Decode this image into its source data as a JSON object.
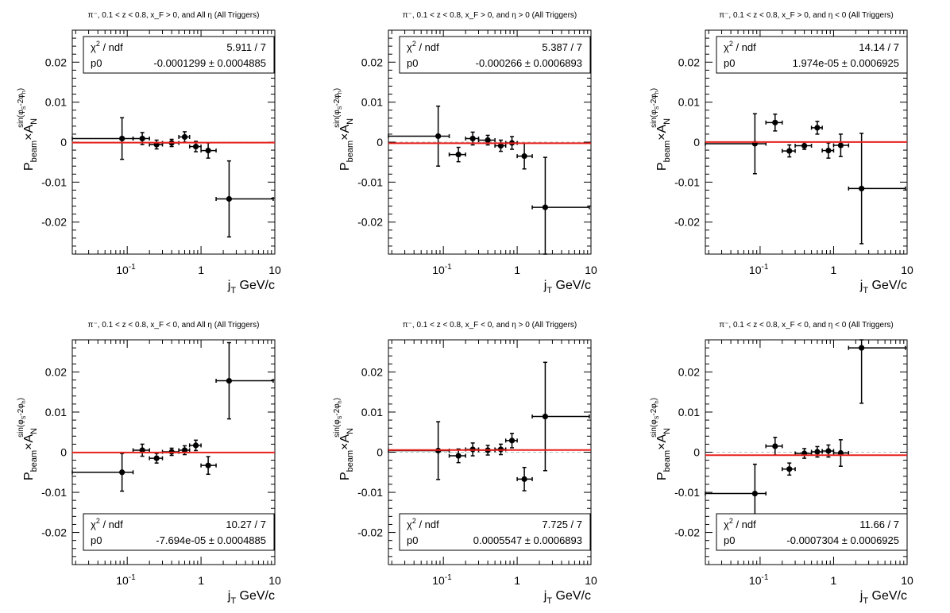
{
  "chart_data": [
    {
      "type": "scatter",
      "title": "π⁻, 0.1 < z < 0.8, x_F > 0, and All η (All Triggers)",
      "xlabel": "j_T GeV/c",
      "ylabel": "P_beam × A_N^{sin(φ_S − 2φ_h)}",
      "xscale": "log",
      "xlim": [
        0.018,
        10
      ],
      "ylim": [
        -0.028,
        0.028
      ],
      "xticks": [
        "10⁻¹",
        "1",
        "10"
      ],
      "yticks": [
        "0.02",
        "0.01",
        "0",
        "-0.01",
        "-0.02"
      ],
      "stats_box": {
        "position": "top",
        "chi2_label": "χ² / ndf",
        "chi2": "5.911 / 7",
        "p0_label": "p0",
        "p0": "-0.0001299 ± 0.0004885"
      },
      "fit": {
        "p0": -0.0001299,
        "color": "#e8201c"
      },
      "points": [
        {
          "x": 0.085,
          "y": 0.0009,
          "xlo": 0.018,
          "xhi": 0.12,
          "err": 0.0052
        },
        {
          "x": 0.16,
          "y": 0.0009,
          "xlo": 0.12,
          "xhi": 0.2,
          "err": 0.0015
        },
        {
          "x": 0.25,
          "y": -0.0006,
          "xlo": 0.2,
          "xhi": 0.3,
          "err": 0.0011
        },
        {
          "x": 0.4,
          "y": -0.0002,
          "xlo": 0.3,
          "xhi": 0.5,
          "err": 0.0009
        },
        {
          "x": 0.6,
          "y": 0.0013,
          "xlo": 0.5,
          "xhi": 0.7,
          "err": 0.0013
        },
        {
          "x": 0.85,
          "y": -0.0011,
          "xlo": 0.7,
          "xhi": 1.0,
          "err": 0.0013
        },
        {
          "x": 1.25,
          "y": -0.0021,
          "xlo": 1.0,
          "xhi": 1.6,
          "err": 0.0019
        },
        {
          "x": 2.4,
          "y": -0.0142,
          "xlo": 1.6,
          "xhi": 9.5,
          "err": 0.0095
        }
      ]
    },
    {
      "type": "scatter",
      "title": "π⁻, 0.1 < z < 0.8, x_F > 0, and η > 0 (All Triggers)",
      "xlabel": "j_T GeV/c",
      "ylabel": "P_beam × A_N^{sin(φ_S − 2φ_h)}",
      "xscale": "log",
      "xlim": [
        0.018,
        10
      ],
      "ylim": [
        -0.028,
        0.028
      ],
      "xticks": [
        "10⁻¹",
        "1",
        "10"
      ],
      "yticks": [
        "0.02",
        "0.01",
        "0",
        "-0.01",
        "-0.02"
      ],
      "stats_box": {
        "position": "top",
        "chi2_label": "χ² / ndf",
        "chi2": "5.387 / 7",
        "p0_label": "p0",
        "p0": "-0.000266 ± 0.0006893"
      },
      "fit": {
        "p0": -0.000266,
        "color": "#e8201c"
      },
      "points": [
        {
          "x": 0.085,
          "y": 0.0015,
          "xlo": 0.018,
          "xhi": 0.12,
          "err": 0.0075
        },
        {
          "x": 0.16,
          "y": -0.0031,
          "xlo": 0.12,
          "xhi": 0.2,
          "err": 0.0018
        },
        {
          "x": 0.25,
          "y": 0.0009,
          "xlo": 0.2,
          "xhi": 0.3,
          "err": 0.0016
        },
        {
          "x": 0.4,
          "y": 0.0005,
          "xlo": 0.3,
          "xhi": 0.5,
          "err": 0.0012
        },
        {
          "x": 0.6,
          "y": -0.0009,
          "xlo": 0.5,
          "xhi": 0.7,
          "err": 0.0014
        },
        {
          "x": 0.85,
          "y": -0.0002,
          "xlo": 0.7,
          "xhi": 1.0,
          "err": 0.0016
        },
        {
          "x": 1.25,
          "y": -0.0035,
          "xlo": 1.0,
          "xhi": 1.6,
          "err": 0.0032
        },
        {
          "x": 2.4,
          "y": -0.0163,
          "xlo": 1.6,
          "xhi": 9.5,
          "err": 0.0125
        }
      ]
    },
    {
      "type": "scatter",
      "title": "π⁻, 0.1 < z < 0.8, x_F > 0, and η < 0 (All Triggers)",
      "xlabel": "j_T GeV/c",
      "ylabel": "P_beam × A_N^{sin(φ_S − 2φ_h)}",
      "xscale": "log",
      "xlim": [
        0.018,
        10
      ],
      "ylim": [
        -0.028,
        0.028
      ],
      "xticks": [
        "10⁻¹",
        "1",
        "10"
      ],
      "yticks": [
        "0.02",
        "0.01",
        "0",
        "-0.01",
        "-0.02"
      ],
      "stats_box": {
        "position": "top",
        "chi2_label": "χ² / ndf",
        "chi2": "14.14 / 7",
        "p0_label": "p0",
        "p0": "1.974e-05 ± 0.0006925"
      },
      "fit": {
        "p0": 1.974e-05,
        "color": "#e8201c"
      },
      "points": [
        {
          "x": 0.085,
          "y": -0.0004,
          "xlo": 0.018,
          "xhi": 0.12,
          "err": 0.0075
        },
        {
          "x": 0.16,
          "y": 0.0049,
          "xlo": 0.12,
          "xhi": 0.2,
          "err": 0.0021
        },
        {
          "x": 0.25,
          "y": -0.0022,
          "xlo": 0.2,
          "xhi": 0.3,
          "err": 0.0015
        },
        {
          "x": 0.4,
          "y": -0.0009,
          "xlo": 0.3,
          "xhi": 0.5,
          "err": 0.0009
        },
        {
          "x": 0.6,
          "y": 0.0036,
          "xlo": 0.5,
          "xhi": 0.7,
          "err": 0.0016
        },
        {
          "x": 0.85,
          "y": -0.0021,
          "xlo": 0.7,
          "xhi": 1.0,
          "err": 0.0019
        },
        {
          "x": 1.25,
          "y": -0.0008,
          "xlo": 1.0,
          "xhi": 1.6,
          "err": 0.0028
        },
        {
          "x": 2.4,
          "y": -0.0116,
          "xlo": 1.6,
          "xhi": 9.5,
          "err": 0.0138
        }
      ]
    },
    {
      "type": "scatter",
      "title": "π⁻, 0.1 < z < 0.8, x_F < 0, and All η (All Triggers)",
      "xlabel": "j_T GeV/c",
      "ylabel": "P_beam × A_N^{sin(φ_S − 2φ_h)}",
      "xscale": "log",
      "xlim": [
        0.018,
        10
      ],
      "ylim": [
        -0.028,
        0.028
      ],
      "xticks": [
        "10⁻¹",
        "1",
        "10"
      ],
      "yticks": [
        "0.02",
        "0.01",
        "0",
        "-0.01",
        "-0.02"
      ],
      "stats_box": {
        "position": "bottom",
        "chi2_label": "χ² / ndf",
        "chi2": "10.27 / 7",
        "p0_label": "p0",
        "p0": "-7.694e-05 ± 0.0004885"
      },
      "fit": {
        "p0": -7.694e-05,
        "color": "#e8201c"
      },
      "points": [
        {
          "x": 0.085,
          "y": -0.005,
          "xlo": 0.018,
          "xhi": 0.12,
          "err": 0.0047
        },
        {
          "x": 0.16,
          "y": 0.0005,
          "xlo": 0.12,
          "xhi": 0.2,
          "err": 0.0015
        },
        {
          "x": 0.25,
          "y": -0.0015,
          "xlo": 0.2,
          "xhi": 0.3,
          "err": 0.0012
        },
        {
          "x": 0.4,
          "y": 0.0001,
          "xlo": 0.3,
          "xhi": 0.5,
          "err": 0.0009
        },
        {
          "x": 0.6,
          "y": 0.0005,
          "xlo": 0.5,
          "xhi": 0.7,
          "err": 0.0011
        },
        {
          "x": 0.85,
          "y": 0.0017,
          "xlo": 0.7,
          "xhi": 1.0,
          "err": 0.0013
        },
        {
          "x": 1.25,
          "y": -0.0033,
          "xlo": 1.0,
          "xhi": 1.6,
          "err": 0.0022
        },
        {
          "x": 2.4,
          "y": 0.0178,
          "xlo": 1.6,
          "xhi": 9.5,
          "err": 0.0095
        }
      ]
    },
    {
      "type": "scatter",
      "title": "π⁻, 0.1 < z < 0.8, x_F < 0, and η > 0 (All Triggers)",
      "xlabel": "j_T GeV/c",
      "ylabel": "P_beam × A_N^{sin(φ_S − 2φ_h)}",
      "xscale": "log",
      "xlim": [
        0.018,
        10
      ],
      "ylim": [
        -0.028,
        0.028
      ],
      "xticks": [
        "10⁻¹",
        "1",
        "10"
      ],
      "yticks": [
        "0.02",
        "0.01",
        "0",
        "-0.01",
        "-0.02"
      ],
      "stats_box": {
        "position": "bottom",
        "chi2_label": "χ² / ndf",
        "chi2": "7.725 / 7",
        "p0_label": "p0",
        "p0": "0.0005547 ± 0.0006893"
      },
      "fit": {
        "p0": 0.0005547,
        "color": "#e8201c"
      },
      "points": [
        {
          "x": 0.085,
          "y": 0.0004,
          "xlo": 0.018,
          "xhi": 0.12,
          "err": 0.0072
        },
        {
          "x": 0.16,
          "y": -0.0009,
          "xlo": 0.12,
          "xhi": 0.2,
          "err": 0.0017
        },
        {
          "x": 0.25,
          "y": 0.0007,
          "xlo": 0.2,
          "xhi": 0.3,
          "err": 0.0016
        },
        {
          "x": 0.4,
          "y": 0.0005,
          "xlo": 0.3,
          "xhi": 0.5,
          "err": 0.0012
        },
        {
          "x": 0.6,
          "y": 0.0007,
          "xlo": 0.5,
          "xhi": 0.7,
          "err": 0.0013
        },
        {
          "x": 0.85,
          "y": 0.0029,
          "xlo": 0.7,
          "xhi": 1.0,
          "err": 0.0018
        },
        {
          "x": 1.25,
          "y": -0.0067,
          "xlo": 1.0,
          "xhi": 1.6,
          "err": 0.0029
        },
        {
          "x": 2.4,
          "y": 0.0089,
          "xlo": 1.6,
          "xhi": 9.5,
          "err": 0.0135
        }
      ]
    },
    {
      "type": "scatter",
      "title": "π⁻, 0.1 < z < 0.8, x_F < 0, and η < 0 (All Triggers)",
      "xlabel": "j_T GeV/c",
      "ylabel": "P_beam × A_N^{sin(φ_S − 2φ_h)}",
      "xscale": "log",
      "xlim": [
        0.018,
        10
      ],
      "ylim": [
        -0.028,
        0.028
      ],
      "xticks": [
        "10⁻¹",
        "1",
        "10"
      ],
      "yticks": [
        "0.02",
        "0.01",
        "0",
        "-0.01",
        "-0.02"
      ],
      "stats_box": {
        "position": "bottom",
        "chi2_label": "χ² / ndf",
        "chi2": "11.66 / 7",
        "p0_label": "p0",
        "p0": "-0.0007304 ± 0.0006925"
      },
      "fit": {
        "p0": -0.0007304,
        "color": "#e8201c"
      },
      "points": [
        {
          "x": 0.085,
          "y": -0.0103,
          "xlo": 0.018,
          "xhi": 0.12,
          "err": 0.0073
        },
        {
          "x": 0.16,
          "y": 0.0015,
          "xlo": 0.12,
          "xhi": 0.2,
          "err": 0.0022
        },
        {
          "x": 0.25,
          "y": -0.0042,
          "xlo": 0.2,
          "xhi": 0.3,
          "err": 0.0015
        },
        {
          "x": 0.4,
          "y": -0.0003,
          "xlo": 0.3,
          "xhi": 0.5,
          "err": 0.0012
        },
        {
          "x": 0.6,
          "y": 0.0001,
          "xlo": 0.5,
          "xhi": 0.7,
          "err": 0.0013
        },
        {
          "x": 0.85,
          "y": 0.0003,
          "xlo": 0.7,
          "xhi": 1.0,
          "err": 0.0015
        },
        {
          "x": 1.25,
          "y": -0.0002,
          "xlo": 1.0,
          "xhi": 1.6,
          "err": 0.0033
        },
        {
          "x": 2.4,
          "y": 0.026,
          "xlo": 1.6,
          "xhi": 9.5,
          "err": 0.0138
        }
      ]
    }
  ]
}
